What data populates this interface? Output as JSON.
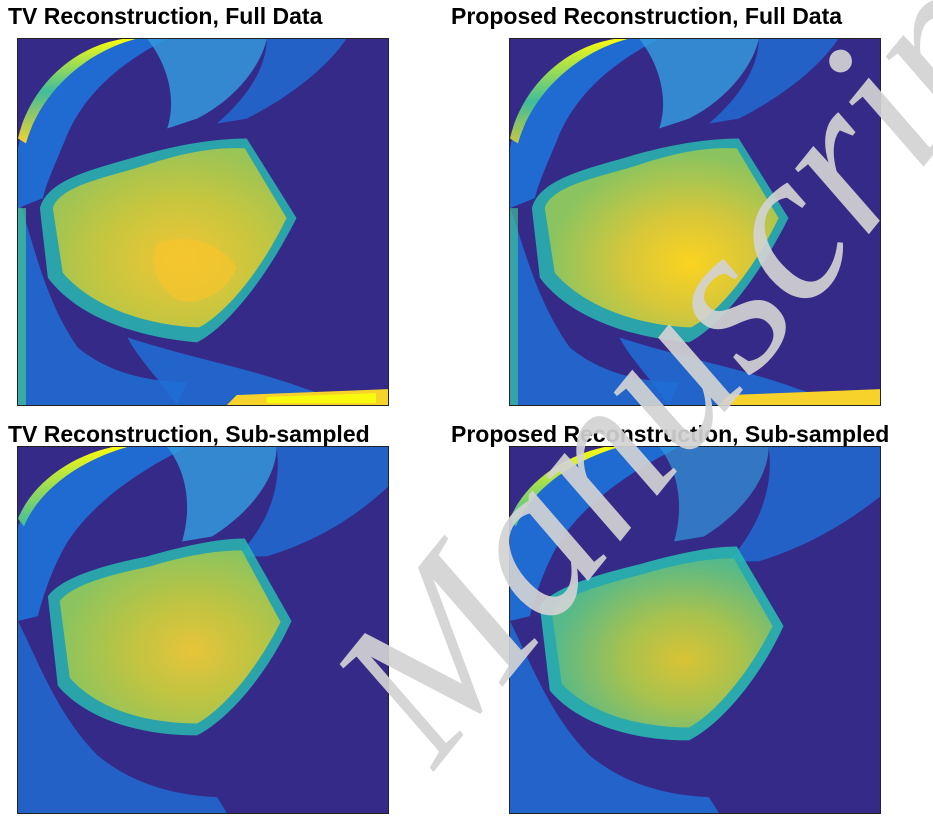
{
  "figure": {
    "panels": [
      {
        "title": "TV Reconstruction, Full Data",
        "variant": "tv_full"
      },
      {
        "title": "Proposed Reconstruction, Full Data",
        "variant": "proposed_full"
      },
      {
        "title": "TV Reconstruction, Sub-sampled",
        "variant": "tv_sub"
      },
      {
        "title": "Proposed Reconstruction, Sub-sampled",
        "variant": "proposed_sub"
      }
    ],
    "colormap": {
      "background": "#352a87",
      "low": "#1f6fd6",
      "mid_blue": "#3399dd",
      "teal": "#29b8b0",
      "green": "#8bc45f",
      "yellow_green": "#c7c93e",
      "yellow": "#f6d22a",
      "bright_yellow": "#f9fb0e"
    },
    "watermark": {
      "text": "Manuscript",
      "color": "#d3d3d3"
    }
  }
}
